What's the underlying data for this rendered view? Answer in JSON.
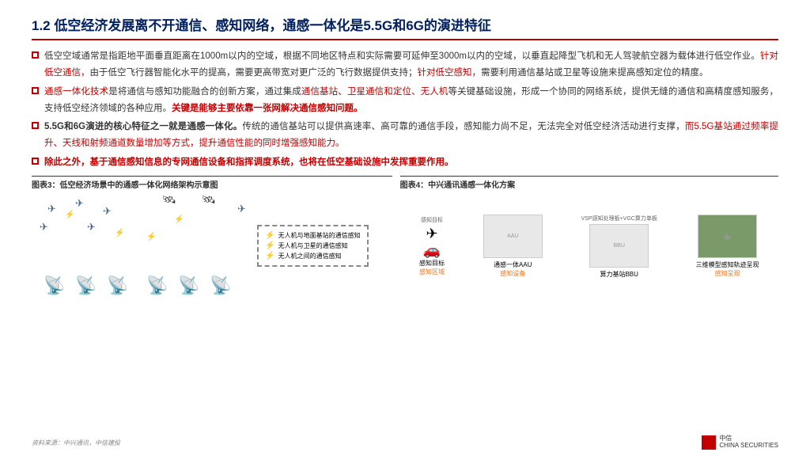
{
  "title": "1.2 低空经济发展离不开通信、感知网络，通感一体化是5.5G和6G的演进特征",
  "bullets": [
    {
      "parts": [
        {
          "text": "低空空域通常是指距地平面垂直距离在1000m以内的空域，根据不同地区特点和实际需要可延伸至3000m以内的空域，以垂直起降型飞机和无人驾驶航空器为载体进行低空作业。",
          "cls": "black"
        },
        {
          "text": "针对低空通信，",
          "cls": "red"
        },
        {
          "text": "由于低空飞行器智能化水平的提高，需要更高带宽对更广泛的飞行数据提供支持；",
          "cls": "black"
        },
        {
          "text": "针对低空感知，",
          "cls": "red"
        },
        {
          "text": "需要利用通信基站或卫星等设施来提高感知定位的精度。",
          "cls": "black"
        }
      ]
    },
    {
      "parts": [
        {
          "text": "通感一体化技术",
          "cls": "red"
        },
        {
          "text": "是将通信与感知功能融合的创新方案，通过集成",
          "cls": "black"
        },
        {
          "text": "通信基站、卫星通信和定位、无人机",
          "cls": "red"
        },
        {
          "text": "等关键基础设施，形成一个协同的网络系统，提供无缝的通信和高精度感知服务，支持低空经济领域的各种应用。",
          "cls": "black"
        },
        {
          "text": "关键是能够主要依靠一张网解决通信感知问题。",
          "cls": "red bold"
        }
      ]
    },
    {
      "parts": [
        {
          "text": "5.5G和6G演进的核心特征之一就是通感一体化。",
          "cls": "black bold"
        },
        {
          "text": "传统的通信基站可以提供高速率、高可靠的通信手段，感知能力尚不足，无法完全对低空经济活动进行支撑，",
          "cls": "black"
        },
        {
          "text": "而5.5G基站通过频率提升、天线和射频通道数量增加等方式，提升通信性能的同时增强感知能力。",
          "cls": "red"
        }
      ]
    },
    {
      "parts": [
        {
          "text": "除此之外，基于通信感知信息的专网通信设备和指挥调度系统，也将在低空基础设施中发挥重要作用。",
          "cls": "red bold"
        }
      ]
    }
  ],
  "fig3_title": "图表3：低空经济场景中的通感一体化网络架构示意图",
  "fig4_title": "图表4：中兴通讯通感一体化方案",
  "legend": {
    "l1": "无人机与地面基站的通信感知",
    "l2": "无人机与卫星的通信感知",
    "l3": "无人机之间的通信感知"
  },
  "fig4": {
    "top1": "感知目标",
    "top2": "VSP感知处理板+VGC算力单板",
    "lbl1": "感知目标",
    "lbl2": "通感一体AAU",
    "lbl3": "算力基站BBU",
    "lbl4": "三维模型感知轨迹呈现",
    "cat1": "感知区域",
    "cat2": "感知设备",
    "cat3": "感知呈现"
  },
  "source": "资料来源：中兴通讯，中信建投",
  "logo_cn": "中信",
  "logo_en": "CHINA SECURITIES"
}
